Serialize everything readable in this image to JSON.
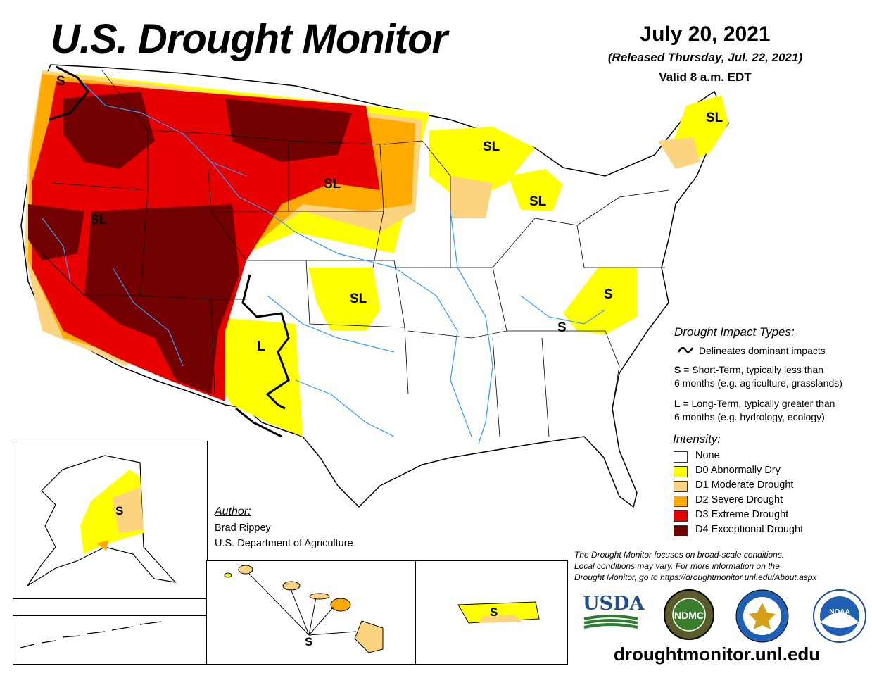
{
  "header": {
    "title": "U.S. Drought Monitor",
    "date": "July 20, 2021",
    "released": "(Released Thursday, Jul. 22, 2021)",
    "valid": "Valid 8 a.m. EDT"
  },
  "impact_types": {
    "heading": "Drought Impact Types:",
    "delineates": "Delineates dominant impacts",
    "short_term_key": "S",
    "short_term_line1": "= Short-Term, typically less than",
    "short_term_line2": "6 months (e.g. agriculture, grasslands)",
    "long_term_key": "L",
    "long_term_line1": "= Long-Term, typically greater than",
    "long_term_line2": "6 months (e.g. hydrology, ecology)"
  },
  "intensity": {
    "heading": "Intensity:",
    "levels": [
      {
        "label": "None",
        "color": "#ffffff"
      },
      {
        "label": "D0 Abnormally Dry",
        "color": "#ffff00"
      },
      {
        "label": "D1 Moderate Drought",
        "color": "#fcd37f"
      },
      {
        "label": "D2 Severe Drought",
        "color": "#ffaa00"
      },
      {
        "label": "D3 Extreme Drought",
        "color": "#e60000"
      },
      {
        "label": "D4 Exceptional Drought",
        "color": "#730000"
      }
    ]
  },
  "author": {
    "heading": "Author:",
    "name": "Brad Rippey",
    "org": "U.S. Department of Agriculture"
  },
  "note": {
    "line1": "The Drought Monitor focuses on broad-scale conditions.",
    "line2": "Local conditions may vary. For more information on the",
    "line3": "Drought Monitor, go to https://droughtmonitor.unl.edu/About.aspx"
  },
  "map_labels": {
    "sl": "SL",
    "s": "S",
    "l": "L"
  },
  "logos": {
    "usda": "USDA",
    "ndmc": "NDMC",
    "ndmc_ring": "NATIONAL DROUGHT MITIGATION CENTER",
    "noaa": "NOAA"
  },
  "website": "droughtmonitor.unl.edu"
}
